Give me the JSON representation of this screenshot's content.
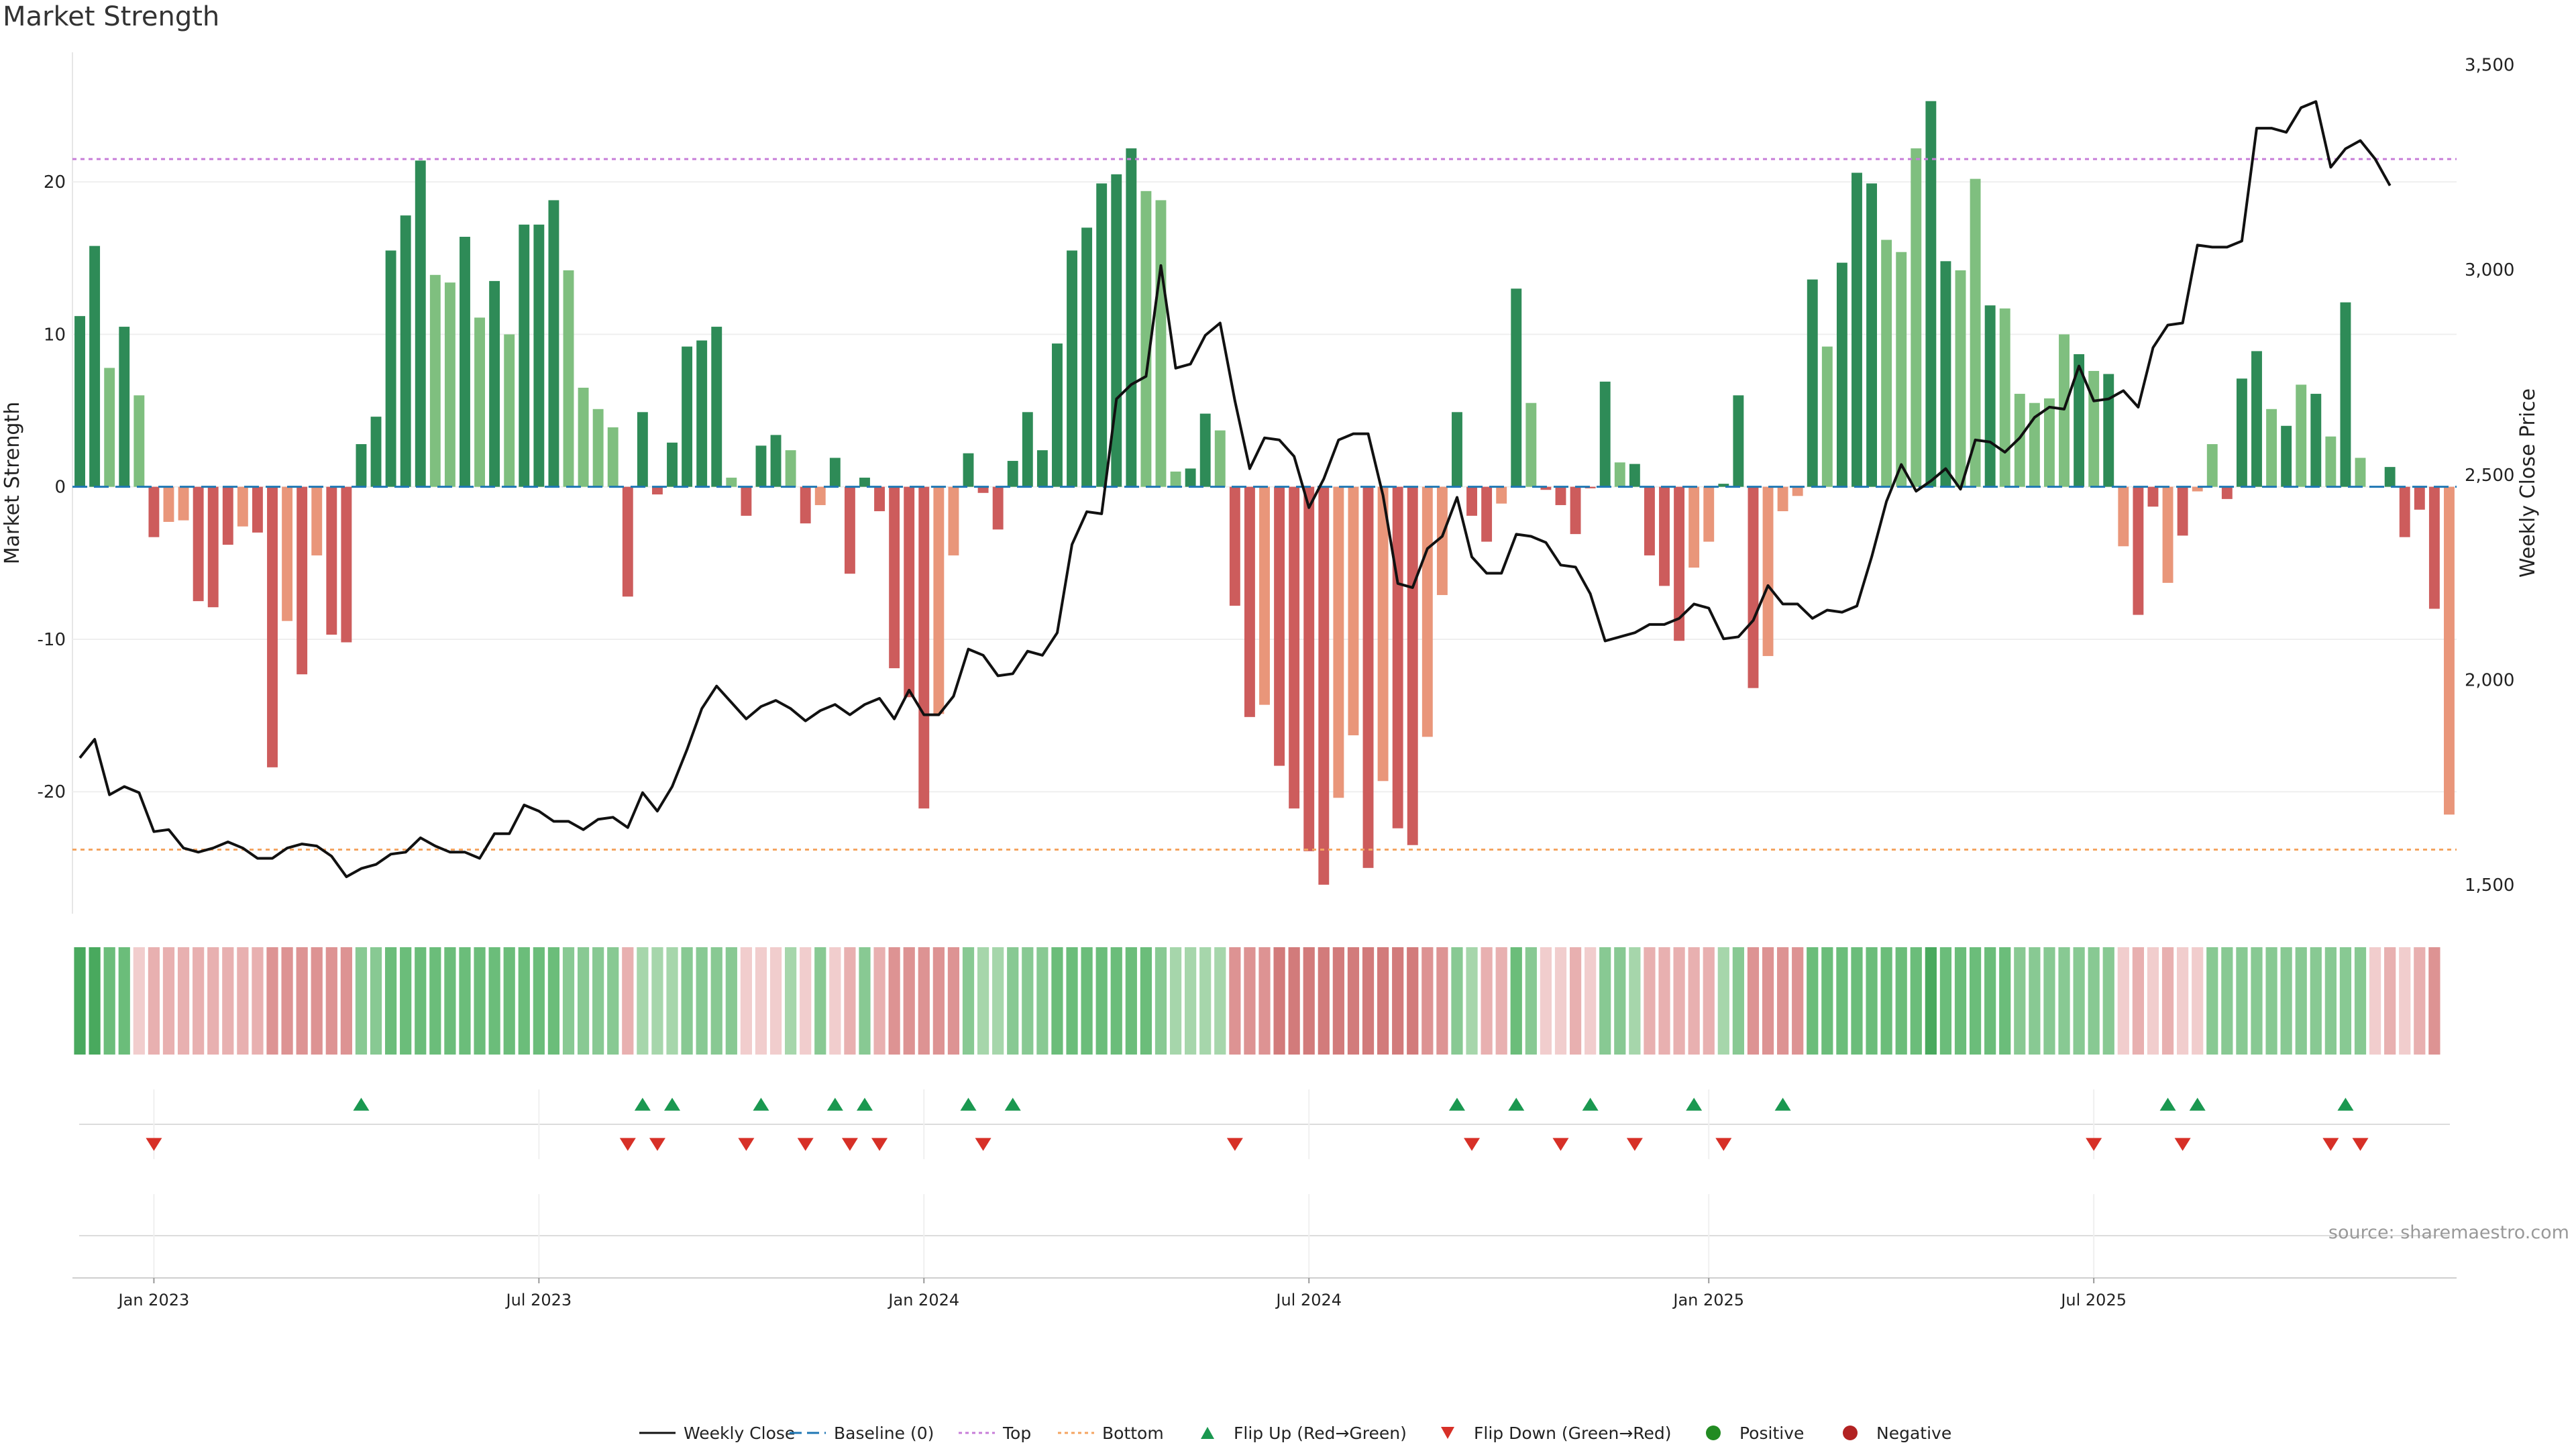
{
  "title": "Market Strength",
  "source_note": "source: sharemaestro.com",
  "colors": {
    "strong_green": "#2e8b57",
    "light_green": "#7fbf7f",
    "strong_red": "#cd5c5c",
    "light_red": "#e9967a",
    "price_line": "#111111",
    "baseline": "#1f77b4",
    "top_line": "#c77dd8",
    "bottom_line": "#f4a460",
    "flip_up": "#1a9850",
    "flip_down": "#d73027",
    "positive_dot": "#228b22",
    "negative_dot": "#b22222"
  },
  "chart_data": {
    "type": "bar",
    "date_start": "2022-11-28",
    "bar_interval": "weekly",
    "left_axis": {
      "label": "Market Strength",
      "range": [
        -28,
        28.5
      ],
      "ticks": [
        20,
        10,
        0,
        -10,
        -20
      ]
    },
    "right_axis": {
      "label": "Weekly Close Price",
      "range": [
        1430,
        3530
      ],
      "ticks": [
        3500,
        3000,
        2500,
        2000,
        1500
      ],
      "tick_labels": [
        "3,500",
        "3,000",
        "2,500",
        "2,000",
        "1,500"
      ]
    },
    "x_ticks": [
      {
        "date": "2023-01-02",
        "label": "Jan 2023"
      },
      {
        "date": "2023-07-03",
        "label": "Jul 2023"
      },
      {
        "date": "2024-01-01",
        "label": "Jan 2024"
      },
      {
        "date": "2024-07-01",
        "label": "Jul 2024"
      },
      {
        "date": "2025-01-06",
        "label": "Jan 2025"
      },
      {
        "date": "2025-07-07",
        "label": "Jul 2025"
      }
    ],
    "top_level": 21.5,
    "bottom_level": -23.8,
    "baseline": 0,
    "strength": [
      11.2,
      15.8,
      7.8,
      10.5,
      6,
      -3.3,
      -2.3,
      -2.2,
      -7.5,
      -7.9,
      -3.8,
      -2.6,
      -3.0,
      -18.4,
      -8.8,
      -12.3,
      -4.5,
      -9.7,
      -10.2,
      2.8,
      4.6,
      15.5,
      17.8,
      21.4,
      13.9,
      13.4,
      16.4,
      11.1,
      13.5,
      10,
      17.2,
      17.2,
      18.8,
      14.2,
      6.5,
      5.1,
      3.9,
      -7.2,
      4.9,
      -0.5,
      2.9,
      9.2,
      9.6,
      10.5,
      0.6,
      -1.9,
      2.7,
      3.4,
      2.4,
      -2.4,
      -1.2,
      1.9,
      -5.7,
      0.6,
      -1.6,
      -11.9,
      -13.8,
      -21.1,
      -14.9,
      -4.5,
      2.2,
      -0.4,
      -2.8,
      1.7,
      4.9,
      2.4,
      9.4,
      15.5,
      17.0,
      19.9,
      20.5,
      22.2,
      19.4,
      18.8,
      1.0,
      1.2,
      4.8,
      3.7,
      -7.8,
      -15.1,
      -14.3,
      -18.3,
      -21.1,
      -23.9,
      -26.1,
      -20.4,
      -16.3,
      -25.0,
      -19.3,
      -22.4,
      -23.5,
      -16.4,
      -7.1,
      4.9,
      -1.9,
      -3.6,
      -1.1,
      13.0,
      5.5,
      -0.2,
      -1.2,
      -3.1,
      -0.1,
      6.9,
      1.6,
      1.5,
      -4.5,
      -6.5,
      -10.1,
      -5.3,
      -3.6,
      0.2,
      6.0,
      -13.2,
      -11.1,
      -1.6,
      -0.6,
      13.6,
      9.2,
      14.7,
      20.6,
      19.9,
      16.2,
      15.4,
      22.2,
      25.3,
      14.8,
      14.2,
      20.2,
      11.9,
      11.7,
      6.1,
      5.5,
      5.8,
      10,
      8.7,
      7.6,
      7.4,
      -3.9,
      -8.4,
      -1.3,
      -6.3,
      -3.2,
      -0.3,
      2.8,
      -0.8,
      7.1,
      8.9,
      5.1,
      4.0,
      6.7,
      6.1,
      3.3,
      12.1,
      1.9,
      0,
      1.3,
      -3.3,
      -1.5,
      -8.0,
      -21.5
    ],
    "strength_style": [
      "S",
      "S",
      "L",
      "S",
      "L",
      "S",
      "L",
      "L",
      "S",
      "S",
      "S",
      "L",
      "S",
      "S",
      "L",
      "S",
      "L",
      "S",
      "S",
      "S",
      "S",
      "S",
      "S",
      "S",
      "L",
      "L",
      "S",
      "L",
      "S",
      "L",
      "S",
      "S",
      "S",
      "L",
      "L",
      "L",
      "L",
      "S",
      "S",
      "S",
      "S",
      "S",
      "S",
      "S",
      "L",
      "S",
      "S",
      "S",
      "L",
      "S",
      "L",
      "S",
      "S",
      "S",
      "S",
      "S",
      "S",
      "S",
      "L",
      "L",
      "S",
      "S",
      "S",
      "S",
      "S",
      "S",
      "S",
      "S",
      "S",
      "S",
      "S",
      "S",
      "L",
      "L",
      "L",
      "S",
      "S",
      "L",
      "S",
      "S",
      "L",
      "S",
      "S",
      "S",
      "S",
      "L",
      "L",
      "S",
      "L",
      "S",
      "S",
      "L",
      "L",
      "S",
      "S",
      "S",
      "L",
      "S",
      "L",
      "S",
      "S",
      "S",
      "S",
      "S",
      "L",
      "S",
      "S",
      "S",
      "S",
      "L",
      "L",
      "S",
      "S",
      "S",
      "L",
      "L",
      "L",
      "S",
      "L",
      "S",
      "S",
      "S",
      "L",
      "L",
      "L",
      "S",
      "S",
      "L",
      "L",
      "S",
      "L",
      "L",
      "L",
      "L",
      "L",
      "S",
      "L",
      "S",
      "L",
      "S",
      "S",
      "L",
      "S",
      "L",
      "L",
      "S",
      "S",
      "S",
      "L",
      "S",
      "L",
      "S",
      "L",
      "S",
      "L",
      "S",
      "S",
      "S",
      "S",
      "S"
    ],
    "weekly_close": [
      1810,
      1855,
      1720,
      1740,
      1725,
      1630,
      1635,
      1590,
      1580,
      1590,
      1605,
      1590,
      1565,
      1565,
      1590,
      1600,
      1595,
      1570,
      1520,
      1540,
      1550,
      1575,
      1580,
      1615,
      1595,
      1580,
      1580,
      1565,
      1625,
      1625,
      1695,
      1680,
      1655,
      1655,
      1635,
      1660,
      1665,
      1640,
      1725,
      1680,
      1740,
      1830,
      1930,
      1985,
      1945,
      1905,
      1935,
      1950,
      1930,
      1900,
      1925,
      1940,
      1915,
      1940,
      1955,
      1905,
      1975,
      1915,
      1915,
      1960,
      2075,
      2060,
      2010,
      2015,
      2070,
      2060,
      2115,
      2330,
      2410,
      2405,
      2685,
      2720,
      2740,
      3010,
      2760,
      2770,
      2840,
      2870,
      2680,
      2515,
      2590,
      2585,
      2545,
      2420,
      2490,
      2585,
      2600,
      2600,
      2450,
      2235,
      2225,
      2320,
      2350,
      2445,
      2300,
      2260,
      2260,
      2355,
      2350,
      2335,
      2280,
      2275,
      2210,
      2095,
      2105,
      2115,
      2135,
      2135,
      2150,
      2185,
      2175,
      2100,
      2105,
      2145,
      2230,
      2185,
      2185,
      2150,
      2170,
      2165,
      2180,
      2300,
      2435,
      2525,
      2460,
      2485,
      2515,
      2465,
      2585,
      2580,
      2555,
      2590,
      2640,
      2665,
      2660,
      2765,
      2680,
      2685,
      2705,
      2665,
      2810,
      2865,
      2870,
      3060,
      3055,
      3055,
      3070,
      3345,
      3345,
      3335,
      3395,
      3410,
      3250,
      3295,
      3315,
      3270,
      3205
    ],
    "heatmap_band": [
      5,
      5,
      4,
      4,
      -1,
      -2,
      -2,
      -2,
      -2,
      -2,
      -2,
      -2,
      -2,
      -3,
      -3,
      -3,
      -3,
      -3,
      -3,
      3,
      3,
      4,
      4,
      4,
      4,
      4,
      4,
      4,
      4,
      4,
      4,
      4,
      4,
      3,
      3,
      3,
      3,
      -2,
      2,
      2,
      2,
      3,
      3,
      3,
      3,
      -1,
      -1,
      -1,
      2,
      -1,
      3,
      -1,
      -2,
      3,
      -2,
      -3,
      -3,
      -3,
      -3,
      -3,
      3,
      2,
      2,
      3,
      3,
      3,
      4,
      4,
      4,
      4,
      4,
      4,
      4,
      3,
      2,
      2,
      2,
      2,
      -3,
      -3,
      -3,
      -4,
      -4,
      -4,
      -4,
      -4,
      -4,
      -4,
      -4,
      -4,
      -4,
      -3,
      -3,
      3,
      2,
      -2,
      -2,
      4,
      3,
      -1,
      -1,
      -2,
      -1,
      3,
      3,
      2,
      -2,
      -2,
      -2,
      -2,
      -2,
      2,
      3,
      -3,
      -3,
      -3,
      -3,
      4,
      4,
      4,
      4,
      4,
      4,
      4,
      4,
      5,
      4,
      4,
      4,
      4,
      4,
      3,
      3,
      3,
      3,
      3,
      3,
      3,
      -1,
      -2,
      -1,
      -2,
      -1,
      -1,
      3,
      3,
      3,
      3,
      3,
      3,
      3,
      3,
      3,
      3,
      3,
      -1,
      -2,
      -1,
      -2,
      -3
    ],
    "flip_up_weeks": [
      19,
      38,
      40,
      46,
      51,
      53,
      60,
      63,
      93,
      97,
      102,
      109,
      115,
      141,
      143,
      153
    ],
    "flip_down_weeks": [
      5,
      37,
      39,
      45,
      49,
      52,
      54,
      61,
      78,
      94,
      100,
      105,
      111,
      136,
      142,
      152,
      154
    ],
    "legend": [
      "Weekly Close",
      "Baseline (0)",
      "Top",
      "Bottom",
      "Flip Up (Red→Green)",
      "Flip Down (Green→Red)",
      "Positive",
      "Negative"
    ]
  }
}
